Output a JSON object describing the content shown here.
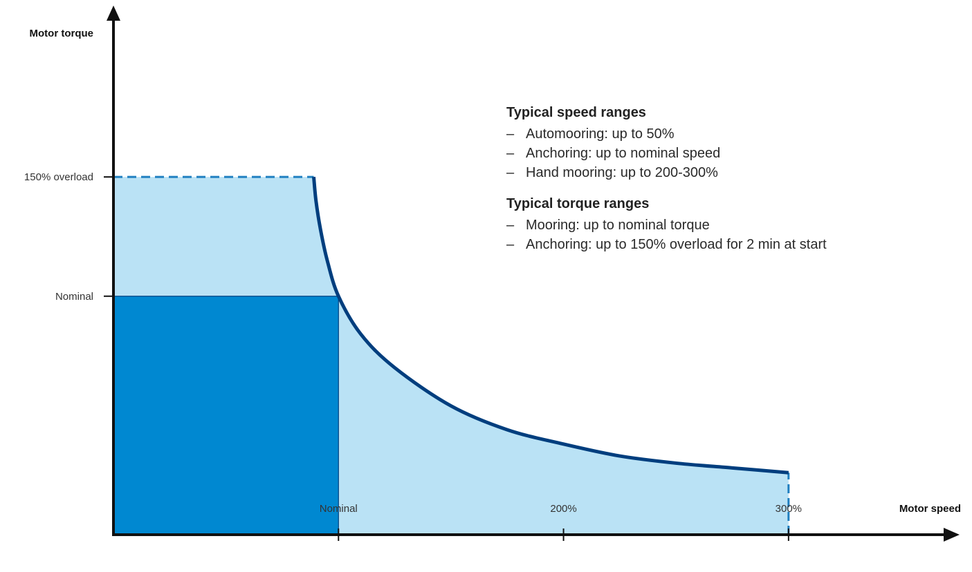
{
  "chart_data": {
    "type": "area",
    "xlabel": "Motor speed",
    "ylabel": "Motor torque",
    "x_ticks": [
      {
        "label": "Nominal",
        "value": 100
      },
      {
        "label": "200%",
        "value": 200
      },
      {
        "label": "300%",
        "value": 300
      }
    ],
    "y_ticks": [
      {
        "label": "Nominal",
        "value": 100
      },
      {
        "label": "150% overload",
        "value": 150
      }
    ],
    "xlim": [
      0,
      360
    ],
    "ylim": [
      0,
      210
    ],
    "series": [
      {
        "name": "",
        "style": "curve",
        "x": [
          89,
          90,
          92,
          95,
          100,
          110,
          125,
          150,
          175,
          200,
          225,
          250,
          275,
          300
        ],
        "y": [
          150,
          140,
          128,
          115,
          100,
          84,
          70,
          54,
          44,
          38,
          33,
          30,
          28,
          26
        ]
      }
    ],
    "regions": [
      {
        "name": "nominal-operating-area",
        "x": [
          0,
          100
        ],
        "y": [
          0,
          100
        ],
        "color": "#0088d1"
      },
      {
        "name": "overload-area",
        "x": [
          0,
          89
        ],
        "y": [
          100,
          150
        ],
        "color": "#bae2f5"
      },
      {
        "name": "field-weakening-area",
        "x": [
          100,
          300
        ],
        "y": [
          0,
          "curve"
        ],
        "color": "#bae2f5"
      }
    ],
    "dashed_limits": [
      {
        "name": "overload-limit",
        "from": [
          0,
          150
        ],
        "to": [
          89,
          150
        ]
      },
      {
        "name": "max-speed-limit",
        "from": [
          300,
          0
        ],
        "to": [
          300,
          26
        ]
      }
    ],
    "colors": {
      "curve": "#003e7e",
      "dashed": "#1f7fc0",
      "axis": "#111111",
      "light_fill": "#bae2f5",
      "dark_fill": "#0088d1"
    }
  },
  "notes": {
    "speed_title": "Typical speed ranges",
    "speed_items": [
      "Automooring: up to 50%",
      "Anchoring: up to nominal speed",
      "Hand mooring: up to 200-300%"
    ],
    "torque_title": "Typical torque ranges",
    "torque_items": [
      "Mooring: up to nominal torque",
      "Anchoring: up to 150% overload for 2 min at start"
    ],
    "dash": "–"
  }
}
